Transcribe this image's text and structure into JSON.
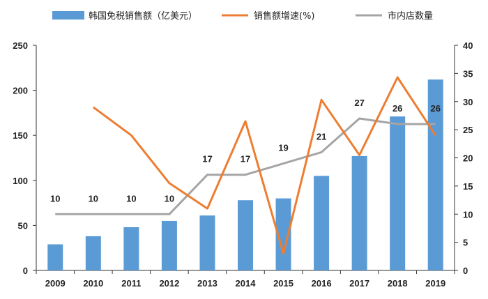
{
  "chart_data": {
    "type": "bar+line",
    "categories": [
      "2009",
      "2010",
      "2011",
      "2012",
      "2013",
      "2014",
      "2015",
      "2016",
      "2017",
      "2018",
      "2019"
    ],
    "legend_position": "top",
    "grid": false,
    "left_axis": {
      "range": [
        0,
        250
      ],
      "ticks": [
        "0",
        "50",
        "100",
        "150",
        "200",
        "250"
      ]
    },
    "right_axis": {
      "range": [
        0,
        40
      ],
      "ticks": [
        "0",
        "5",
        "10",
        "15",
        "20",
        "25",
        "30",
        "35",
        "40"
      ]
    },
    "series": [
      {
        "name": "韩国免税销售额（亿美元）",
        "type": "bar",
        "axis": "left",
        "color": "#5b9bd5",
        "values": [
          29,
          38,
          48,
          55,
          61,
          78,
          80,
          105,
          127,
          171,
          212
        ]
      },
      {
        "name": "销售额增速(%)",
        "type": "line",
        "axis": "right",
        "color": "#ed7d31",
        "values": [
          null,
          29,
          24,
          15.5,
          11,
          26.5,
          3,
          30.3,
          20.5,
          34.3,
          24
        ]
      },
      {
        "name": "市内店数量",
        "type": "line",
        "axis": "right",
        "color": "#a5a5a5",
        "values": [
          10,
          10,
          10,
          10,
          17,
          17,
          19,
          21,
          27,
          26,
          26
        ],
        "labels": [
          "10",
          "10",
          "10",
          "10",
          "17",
          "17",
          "19",
          "21",
          "27",
          "26",
          "26"
        ]
      }
    ]
  }
}
